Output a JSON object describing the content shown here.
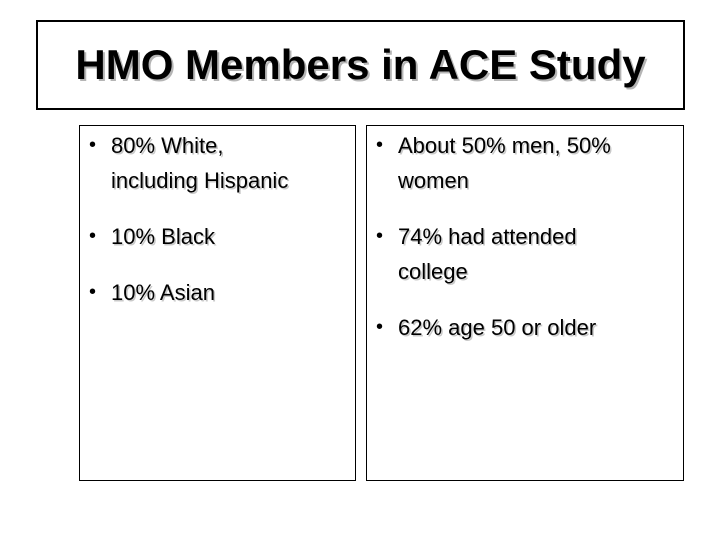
{
  "slide": {
    "title": "HMO Members in ACE Study",
    "bullet_char": "•",
    "left_panel": {
      "items": [
        "80% White,\nincluding Hispanic",
        "10% Black",
        "10% Asian"
      ]
    },
    "right_panel": {
      "items": [
        "About 50% men, 50%\nwomen",
        "74% had attended\ncollege",
        "62% age 50 or older"
      ]
    },
    "colors": {
      "background": "#ffffff",
      "text": "#000000",
      "border": "#000000",
      "title_shadow": "#b5b5b5",
      "body_shadow": "#c9c9c9"
    }
  }
}
